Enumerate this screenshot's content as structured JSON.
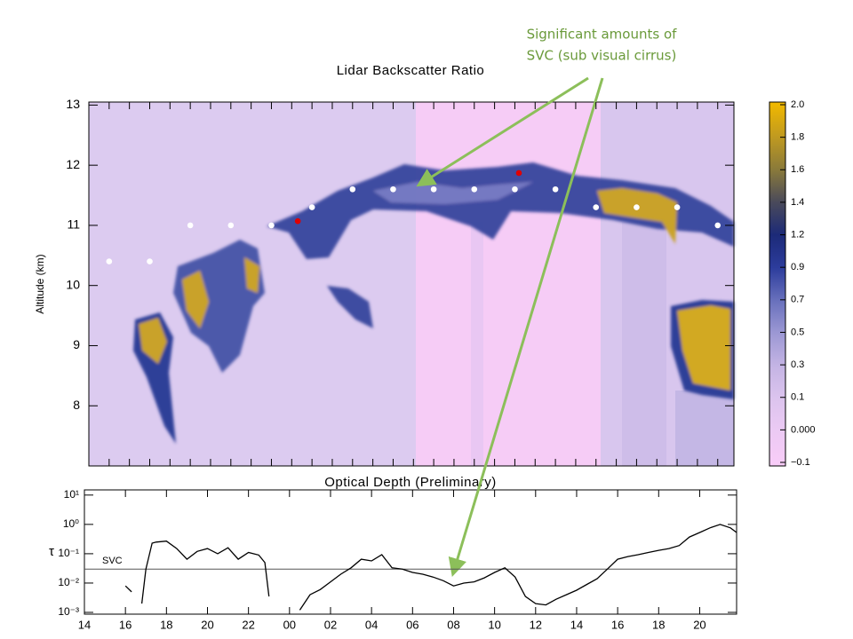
{
  "annotation": [
    "Significant amounts of",
    "SVC (sub visual cirrus)"
  ],
  "chart_data": [
    {
      "type": "heatmap",
      "title": "Lidar Backscatter Ratio",
      "y_label": "Altitude (km)",
      "xlim": [
        14,
        45.8
      ],
      "xticks": [
        15,
        16,
        17,
        18,
        19,
        20,
        21,
        22,
        23,
        24,
        25,
        26,
        27,
        28,
        29,
        30,
        31,
        32,
        33,
        34,
        35,
        36,
        37,
        38,
        39,
        40,
        41,
        42,
        43,
        44,
        45
      ],
      "ylim": [
        7,
        13.05
      ],
      "yticks": [
        8,
        9,
        10,
        11,
        12,
        13
      ],
      "colorbar": {
        "ticks": [
          {
            "value": -0.1,
            "label": "−0.1"
          },
          {
            "value": 0,
            "label": "0.000"
          },
          0.1,
          0.3,
          0.5,
          0.7,
          0.9,
          1.2,
          1.4,
          1.6,
          1.8,
          {
            "value": 2,
            "label": "2.0"
          }
        ],
        "colors": [
          "#f8ccf8",
          "#eccaf4",
          "#dcc4ee",
          "#c4b4e4",
          "#9c98d4",
          "#6870bc",
          "#2c3c9c",
          "#1c2a78",
          "#4a4a5a",
          "#8a7a3a",
          "#c09a20",
          "#f0b800"
        ]
      },
      "series": [
        {
          "color": "#ffffff",
          "x": [
            15,
            17,
            19,
            21,
            23,
            25,
            27,
            29,
            31,
            33,
            35,
            37,
            39,
            41,
            43,
            45
          ],
          "values": [
            10.4,
            10.4,
            11.0,
            11.0,
            11.0,
            11.3,
            11.6,
            11.6,
            11.6,
            11.6,
            11.6,
            11.6,
            11.3,
            11.3,
            11.3,
            11.0
          ]
        },
        {
          "color": "#e00000",
          "x": [
            24.3,
            35.2
          ],
          "values": [
            11.07,
            11.87
          ]
        }
      ]
    },
    {
      "type": "line",
      "title": "Optical Depth (Preliminary)",
      "y_label": "τ",
      "log_scale": true,
      "xlim": [
        14,
        45.8
      ],
      "xticks": [
        14,
        16,
        18,
        20,
        22,
        {
          "value": 24,
          "label": "00"
        },
        {
          "value": 26,
          "label": "02"
        },
        {
          "value": 28,
          "label": "04"
        },
        {
          "value": 30,
          "label": "06"
        },
        {
          "value": 32,
          "label": "08"
        },
        {
          "value": 34,
          "label": "10"
        },
        {
          "value": 36,
          "label": "12"
        },
        {
          "value": 38,
          "label": "14"
        },
        {
          "value": 40,
          "label": "16"
        },
        {
          "value": 42,
          "label": "18"
        },
        {
          "value": 44,
          "label": "20"
        }
      ],
      "ylim": [
        0.00087,
        15
      ],
      "yticks": [
        {
          "value": 0.001,
          "label": "10⁻³"
        },
        {
          "value": 0.01,
          "label": "10⁻²"
        },
        {
          "value": 0.1,
          "label": "10⁻¹"
        },
        {
          "value": 1,
          "label": "10⁰"
        },
        {
          "value": 10,
          "label": "10¹"
        }
      ],
      "reference_line": {
        "value": 0.03,
        "label": "SVC"
      },
      "x": [
        16.0,
        16.3,
        16.5,
        16.8,
        17.0,
        17.3,
        17.5,
        18.0,
        18.5,
        19.0,
        19.5,
        20.0,
        20.5,
        21.0,
        21.5,
        22.0,
        22.5,
        22.8,
        23.0,
        23.5,
        24.5,
        25.0,
        25.5,
        26.0,
        26.5,
        27.0,
        27.5,
        28.0,
        28.5,
        29.0,
        29.5,
        30.0,
        30.5,
        31.0,
        31.5,
        32.0,
        32.5,
        33.0,
        33.5,
        34.0,
        34.5,
        35.0,
        35.5,
        36.0,
        36.5,
        37.0,
        37.5,
        38.0,
        38.5,
        39.0,
        39.5,
        40.0,
        40.5,
        41.0,
        41.5,
        42.0,
        42.5,
        43.0,
        43.5,
        44.0,
        44.5,
        45.0,
        45.5,
        45.8
      ],
      "series": [
        {
          "color": "#000000",
          "values": [
            0.008,
            0.005,
            null,
            0.002,
            0.03,
            0.23,
            0.25,
            0.27,
            0.15,
            0.065,
            0.12,
            0.15,
            0.1,
            0.16,
            0.065,
            0.11,
            0.09,
            0.05,
            0.0035,
            null,
            0.0012,
            0.004,
            0.006,
            0.011,
            0.02,
            0.033,
            0.065,
            0.057,
            0.093,
            0.033,
            0.03,
            0.023,
            0.02,
            0.016,
            0.012,
            0.008,
            0.01,
            0.011,
            0.015,
            0.023,
            0.033,
            0.016,
            0.0035,
            0.002,
            0.0018,
            0.0028,
            0.004,
            0.0057,
            0.009,
            0.014,
            0.03,
            0.065,
            0.08,
            0.093,
            0.11,
            0.13,
            0.15,
            0.19,
            0.37,
            0.53,
            0.76,
            1.0,
            0.76,
            0.53
          ]
        }
      ]
    }
  ]
}
